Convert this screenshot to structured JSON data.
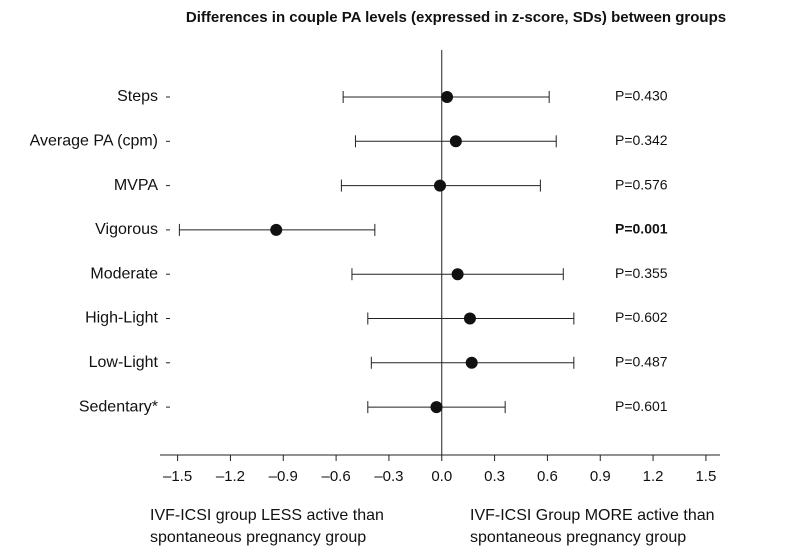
{
  "chart_data": {
    "type": "forest",
    "title": "Differences in couple PA levels (expressed in z-score, SDs) between groups",
    "categories": [
      "Steps",
      "Average PA (cpm)",
      "MVPA",
      "Vigorous",
      "Moderate",
      "High-Light",
      "Low-Light",
      "Sedentary*"
    ],
    "values": [
      0.03,
      0.08,
      -0.01,
      -0.94,
      0.09,
      0.16,
      0.17,
      -0.03
    ],
    "lower": [
      -0.56,
      -0.49,
      -0.57,
      -1.49,
      -0.51,
      -0.42,
      -0.4,
      -0.42
    ],
    "upper": [
      0.61,
      0.65,
      0.56,
      -0.38,
      0.69,
      0.75,
      0.75,
      0.36
    ],
    "p_values": [
      "P=0.430",
      "P=0.342",
      "P=0.576",
      "P=0.001",
      "P=0.355",
      "P=0.602",
      "P=0.487",
      "P=0.601"
    ],
    "p_bold": [
      false,
      false,
      false,
      true,
      false,
      false,
      false,
      false
    ],
    "color": "#111111",
    "xlim": [
      -1.6,
      1.58
    ],
    "xticks": [
      {
        "value": -1.5,
        "label": "–1.5"
      },
      {
        "value": -1.2,
        "label": "–1.2"
      },
      {
        "value": -0.9,
        "label": "–0.9"
      },
      {
        "value": -0.6,
        "label": "–0.6"
      },
      {
        "value": -0.3,
        "label": "–0.3"
      },
      {
        "value": 0,
        "label": "0.0"
      },
      0.3,
      0.6,
      0.9,
      1.2,
      1.5
    ],
    "left_note": [
      "IVF-ICSI group LESS active than",
      "spontaneous pregnancy group"
    ],
    "right_note": [
      "IVF-ICSI Group MORE active than",
      "spontaneous pregnancy group"
    ]
  }
}
